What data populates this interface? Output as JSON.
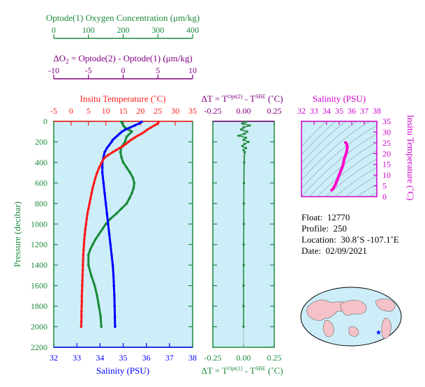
{
  "colors": {
    "oxygen": "#1a8a3a",
    "delta_o2": "#800080",
    "temperature": "#ff1a1a",
    "salinity": "#0000ff",
    "delta_t": "#1a8a3a",
    "ts_curve": "#ff00cc",
    "ts_axis": "#cc00cc",
    "panel_bg": "#cdeef8",
    "pressure_axis": "#1a8a3a"
  },
  "chart_data": [
    {
      "type": "line",
      "title": "",
      "axes": {
        "oxygen": {
          "label": "Optode(1) Oxygen Concentration (μm/kg)",
          "ticks": [
            "0",
            "100",
            "200",
            "300",
            "400"
          ],
          "range": [
            0,
            400
          ]
        },
        "delta_o2": {
          "label_prefix": "ΔO",
          "label_sub": "2",
          "label_rest": " = Optode(2) - Optode(1)   (μm/kg)",
          "ticks": [
            "-10",
            "-5",
            "0",
            "5",
            "10"
          ],
          "range": [
            -10,
            10
          ]
        },
        "temperature": {
          "label": "Insitu Temperature (˚C)",
          "ticks": [
            "-5",
            "0",
            "5",
            "10",
            "15",
            "20",
            "25",
            "30",
            "35"
          ],
          "range": [
            -5,
            35
          ]
        },
        "salinity": {
          "label": "Salinity (PSU)",
          "ticks": [
            "32",
            "33",
            "34",
            "35",
            "36",
            "37",
            "38"
          ],
          "range": [
            32,
            38
          ]
        },
        "pressure": {
          "label": "Pressure (decibar)",
          "ticks": [
            "0",
            "200",
            "400",
            "600",
            "800",
            "1000",
            "1200",
            "1400",
            "1600",
            "1800",
            "2000",
            "2200"
          ],
          "range": [
            0,
            2200
          ]
        }
      },
      "series": {
        "temperature": {
          "pressure": [
            5,
            20,
            40,
            60,
            80,
            100,
            120,
            140,
            160,
            180,
            200,
            220,
            240,
            260,
            280,
            300,
            330,
            360,
            400,
            450,
            500,
            550,
            600,
            650,
            700,
            750,
            800,
            850,
            900,
            950,
            1000,
            1050,
            1100,
            1150,
            1200,
            1250,
            1300,
            1350,
            1400,
            1450,
            1500,
            1550,
            1600,
            1650,
            1700,
            1750,
            1800,
            1850,
            1900,
            1950,
            2000
          ],
          "values": [
            25.2,
            25.0,
            24.0,
            23.0,
            22.0,
            21.2,
            20.3,
            19.2,
            18.2,
            17.3,
            16.5,
            15.8,
            15.0,
            14.0,
            13.0,
            12.0,
            10.6,
            9.5,
            8.8,
            8.1,
            7.5,
            7.0,
            6.6,
            6.2,
            5.9,
            5.6,
            5.3,
            5.0,
            4.7,
            4.5,
            4.3,
            4.1,
            3.95,
            3.8,
            3.7,
            3.6,
            3.5,
            3.45,
            3.4,
            3.35,
            3.3,
            3.25,
            3.2,
            3.15,
            3.1,
            3.1,
            3.05,
            3.0,
            3.0,
            2.95,
            2.9
          ]
        },
        "salinity": {
          "pressure": [
            5,
            20,
            40,
            60,
            80,
            100,
            120,
            140,
            160,
            180,
            200,
            230,
            260,
            300,
            350,
            400,
            450,
            500,
            600,
            700,
            800,
            900,
            1000,
            1100,
            1200,
            1300,
            1400,
            1500,
            1600,
            1700,
            1800,
            1900,
            2000
          ],
          "values": [
            35.8,
            35.7,
            35.5,
            35.3,
            35.1,
            34.95,
            34.85,
            34.75,
            34.65,
            34.55,
            34.5,
            34.4,
            34.3,
            34.2,
            34.15,
            34.1,
            34.1,
            34.1,
            34.15,
            34.2,
            34.25,
            34.3,
            34.35,
            34.4,
            34.45,
            34.5,
            34.55,
            34.58,
            34.6,
            34.62,
            34.63,
            34.64,
            34.65
          ]
        },
        "oxygen": {
          "pressure": [
            5,
            20,
            40,
            60,
            80,
            100,
            150,
            200,
            250,
            300,
            350,
            400,
            450,
            500,
            550,
            600,
            650,
            700,
            750,
            800,
            850,
            900,
            950,
            1000,
            1050,
            1100,
            1150,
            1200,
            1250,
            1300,
            1400,
            1500,
            1600,
            1700,
            1800,
            1900,
            2000
          ],
          "values": [
            195,
            198,
            200,
            205,
            215,
            225,
            210,
            205,
            195,
            192,
            195,
            200,
            210,
            220,
            228,
            232,
            230,
            225,
            218,
            210,
            195,
            180,
            163,
            150,
            140,
            130,
            120,
            112,
            105,
            100,
            100,
            108,
            118,
            125,
            130,
            135,
            137
          ]
        },
        "delta_t": {
          "pressure": [
            5,
            20,
            40,
            60,
            80,
            100,
            120,
            140,
            160,
            180,
            200,
            220,
            240,
            260,
            280,
            300,
            400,
            600,
            800,
            1000,
            1200,
            1400,
            1600,
            1800,
            2000
          ],
          "values": [
            0.02,
            -0.01,
            0.05,
            0.0,
            -0.02,
            0.03,
            0.01,
            -0.04,
            0.02,
            0.0,
            0.04,
            0.01,
            -0.01,
            0.02,
            0.0,
            0.01,
            0.005,
            0.003,
            0.002,
            0.002,
            0.001,
            0.001,
            0.0,
            0.0,
            0.0
          ]
        }
      }
    },
    {
      "type": "scatter",
      "axes": {
        "delta_t_top": {
          "label_prefix": "ΔT = T",
          "label_sup1": "Opt(2)",
          "label_mid": " - T",
          "label_sup2": "SBE",
          "label_end": "  (˚C)",
          "ticks": [
            "-0.25",
            "0.00",
            "0.25"
          ],
          "range": [
            -0.25,
            0.25
          ]
        },
        "delta_t_bottom": {
          "label_prefix": "ΔT = T",
          "label_sup1": "Opt(1)",
          "label_mid": " - T",
          "label_sup2": "SBE",
          "label_end": "  (˚C)",
          "ticks": [
            "-0.25",
            "0.00",
            "0.25"
          ],
          "range": [
            -0.25,
            0.25
          ]
        }
      }
    },
    {
      "type": "line",
      "axes": {
        "salinity": {
          "label": "Salinity (PSU)",
          "ticks": [
            "32",
            "33",
            "34",
            "35",
            "36",
            "37",
            "38"
          ],
          "range": [
            32,
            38
          ]
        },
        "temperature": {
          "label": "Insitu Temperature (˚C)",
          "ticks": [
            "0",
            "5",
            "10",
            "15",
            "20",
            "25",
            "30",
            "35"
          ],
          "range": [
            0,
            35
          ]
        }
      },
      "series": {
        "ts": {
          "salinity": [
            34.4,
            34.5,
            34.6,
            34.7,
            34.8,
            34.9,
            35.0,
            35.1,
            35.2,
            35.3,
            35.35,
            35.4,
            35.5,
            35.6,
            35.65,
            35.6,
            35.5
          ],
          "temperature": [
            3.0,
            3.5,
            4.5,
            5.5,
            7.0,
            8.5,
            10.0,
            11.5,
            13.0,
            14.5,
            16.0,
            17.5,
            19.0,
            21.0,
            23.0,
            24.5,
            25.2
          ]
        }
      }
    }
  ],
  "info": {
    "float_label": "Float:",
    "float_value": "12770",
    "profile_label": "Profile:",
    "profile_value": "250",
    "location_label": "Location:",
    "location_value": "30.8˚S  -107.1˚E",
    "date_label": "Date:",
    "date_value": "02/09/2021"
  },
  "map": {
    "icon": "world-map-icon",
    "marker_icon": "star-icon"
  }
}
